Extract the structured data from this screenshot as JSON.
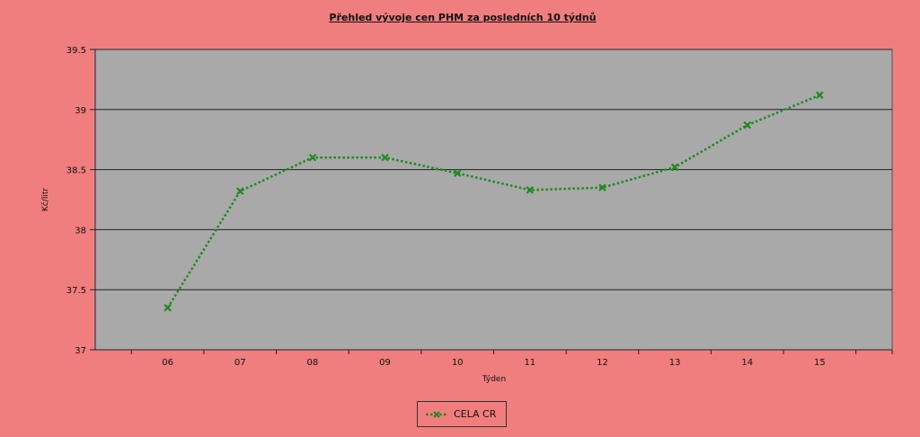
{
  "chart_data": {
    "type": "line",
    "title": "Přehled vývoje cen PHM za posledních 10 týdnů",
    "xlabel": "Týden",
    "ylabel": "Kč/litr",
    "categories": [
      "06",
      "07",
      "08",
      "09",
      "10",
      "11",
      "12",
      "13",
      "14",
      "15"
    ],
    "series": [
      {
        "name": "CELA CR",
        "values": [
          37.35,
          38.32,
          38.6,
          38.6,
          38.47,
          38.33,
          38.35,
          38.52,
          38.87,
          39.12
        ],
        "color": "#1e8a1e",
        "marker": "x",
        "line_style": "dotted"
      }
    ],
    "ylim": [
      37,
      39.5
    ],
    "yticks": [
      "37",
      "37.5",
      "38",
      "38.5",
      "39",
      "39.5"
    ],
    "grid": true,
    "plot_background": "#a9a9a9",
    "page_background": "#f07e7e",
    "legend_position": "bottom-center"
  }
}
